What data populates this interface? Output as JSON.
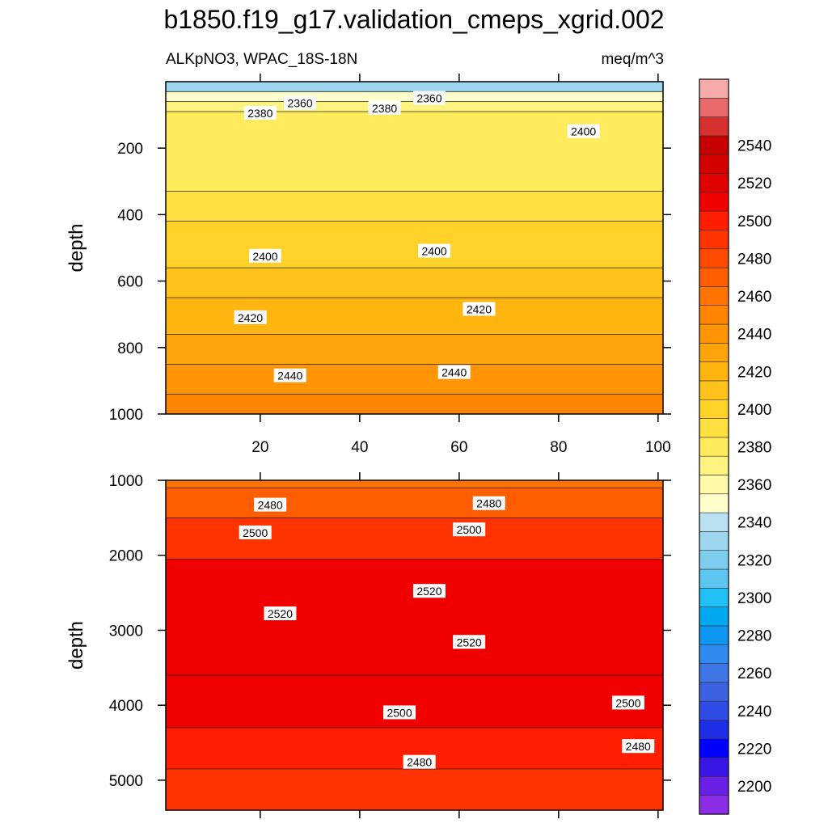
{
  "title": "b1850.f19_g17.validation_cmeps_xgrid.002",
  "subtitle_left": "ALKpNO3, WPAC_18S-18N",
  "subtitle_right": "meq/m^3",
  "chart_data": [
    {
      "type": "heatmap",
      "name": "upper-panel",
      "ylabel": "depth",
      "xlim": [
        1,
        101
      ],
      "ylim": [
        0,
        1000
      ],
      "y_inverted": true,
      "x_ticks": [
        20,
        40,
        60,
        80,
        100
      ],
      "x_tick_labels": [
        "20",
        "40",
        "60",
        "80",
        "100"
      ],
      "y_ticks": [
        200,
        400,
        600,
        800,
        1000
      ],
      "y_tick_labels": [
        "200",
        "400",
        "600",
        "800",
        "1000"
      ],
      "bands": [
        {
          "top": 0,
          "bottom": 30,
          "level": 2330
        },
        {
          "top": 30,
          "bottom": 60,
          "level": 2350
        },
        {
          "top": 60,
          "bottom": 90,
          "level": 2370
        },
        {
          "top": 90,
          "bottom": 330,
          "level": 2380
        },
        {
          "top": 330,
          "bottom": 420,
          "level": 2390
        },
        {
          "top": 420,
          "bottom": 560,
          "level": 2400
        },
        {
          "top": 560,
          "bottom": 650,
          "level": 2410
        },
        {
          "top": 650,
          "bottom": 760,
          "level": 2420
        },
        {
          "top": 760,
          "bottom": 850,
          "level": 2430
        },
        {
          "top": 850,
          "bottom": 940,
          "level": 2440
        },
        {
          "top": 940,
          "bottom": 1000,
          "level": 2450
        }
      ],
      "contour_labels": [
        {
          "text": "2360",
          "x": 28,
          "y": 65
        },
        {
          "text": "2360",
          "x": 54,
          "y": 50
        },
        {
          "text": "2380",
          "x": 20,
          "y": 95
        },
        {
          "text": "2380",
          "x": 45,
          "y": 80
        },
        {
          "text": "2400",
          "x": 85,
          "y": 150
        },
        {
          "text": "2400",
          "x": 21,
          "y": 525
        },
        {
          "text": "2400",
          "x": 55,
          "y": 510
        },
        {
          "text": "2420",
          "x": 18,
          "y": 710
        },
        {
          "text": "2420",
          "x": 64,
          "y": 685
        },
        {
          "text": "2440",
          "x": 26,
          "y": 885
        },
        {
          "text": "2440",
          "x": 59,
          "y": 875
        }
      ]
    },
    {
      "type": "heatmap",
      "name": "lower-panel",
      "ylabel": "depth",
      "xlim": [
        1,
        101
      ],
      "ylim": [
        1000,
        5400
      ],
      "y_inverted": true,
      "y_ticks": [
        1000,
        2000,
        3000,
        4000,
        5000
      ],
      "y_tick_labels": [
        "1000",
        "2000",
        "3000",
        "4000",
        "5000"
      ],
      "bands": [
        {
          "top": 1000,
          "bottom": 1100,
          "level": 2460
        },
        {
          "top": 1100,
          "bottom": 1500,
          "level": 2470
        },
        {
          "top": 1500,
          "bottom": 2050,
          "level": 2490
        },
        {
          "top": 2050,
          "bottom": 3600,
          "level": 2510
        },
        {
          "top": 3600,
          "bottom": 4300,
          "level": 2510
        },
        {
          "top": 4300,
          "bottom": 4850,
          "level": 2500
        },
        {
          "top": 4850,
          "bottom": 5400,
          "level": 2490
        }
      ],
      "contour_labels": [
        {
          "text": "2480",
          "x": 22,
          "y": 1330
        },
        {
          "text": "2480",
          "x": 66,
          "y": 1310
        },
        {
          "text": "2500",
          "x": 19,
          "y": 1700
        },
        {
          "text": "2500",
          "x": 62,
          "y": 1660
        },
        {
          "text": "2520",
          "x": 54,
          "y": 2480
        },
        {
          "text": "2520",
          "x": 24,
          "y": 2780
        },
        {
          "text": "2520",
          "x": 62,
          "y": 3160
        },
        {
          "text": "2500",
          "x": 48,
          "y": 4100
        },
        {
          "text": "2500",
          "x": 94,
          "y": 3970
        },
        {
          "text": "2480",
          "x": 52,
          "y": 4760
        },
        {
          "text": "2480",
          "x": 96,
          "y": 4550
        }
      ]
    }
  ],
  "colorbar": {
    "tick_labels": [
      "2200",
      "2220",
      "2240",
      "2260",
      "2280",
      "2300",
      "2320",
      "2340",
      "2360",
      "2380",
      "2400",
      "2420",
      "2440",
      "2460",
      "2480",
      "2500",
      "2520",
      "2540"
    ],
    "colors": [
      "#8b2ee6",
      "#6a1fe6",
      "#3a16e6",
      "#0000ff",
      "#1e2ee6",
      "#2f4be6",
      "#3d61e0",
      "#3f76e6",
      "#2f8aef",
      "#0f96f0",
      "#00a9f0",
      "#20c0f5",
      "#5cc6f0",
      "#7dcdee",
      "#9dd6ee",
      "#b9e1f2",
      "#ffffcc",
      "#fff9a8",
      "#fff37f",
      "#ffeb5c",
      "#ffe040",
      "#ffd22a",
      "#ffc31c",
      "#ffb50f",
      "#ffa40a",
      "#ff9405",
      "#ff8400",
      "#ff7300",
      "#ff5e00",
      "#ff4a00",
      "#ff3300",
      "#ff1f00",
      "#f00000",
      "#e00000",
      "#d40000",
      "#c40000",
      "#d63030",
      "#e86a6a",
      "#f7aaaa"
    ]
  }
}
